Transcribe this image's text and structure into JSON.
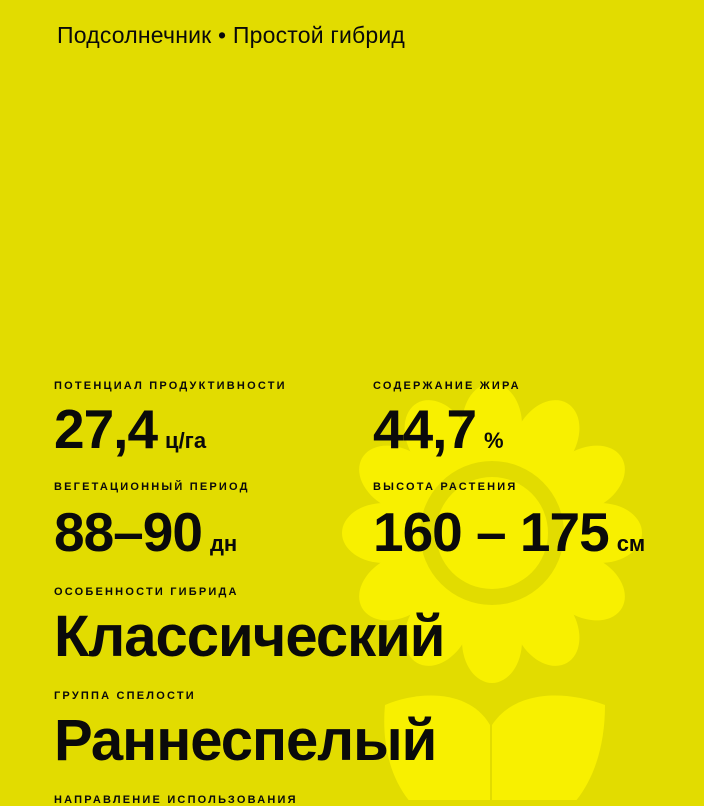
{
  "header": {
    "title": "Подсолнечник • Простой гибрид"
  },
  "colors": {
    "background": "#e2dc00",
    "flower": "#f8f000",
    "text": "#0a0a0a"
  },
  "decoration": {
    "icon": "sunflower-icon"
  },
  "stats": [
    {
      "label": "ПОТЕНЦИАЛ ПРОДУКТИВНОСТИ",
      "value": "27,4",
      "unit": "ц/га"
    },
    {
      "label": "СОДЕРЖАНИЕ ЖИРА",
      "value": "44,7",
      "unit": "%"
    },
    {
      "label": "ВЕГЕТАЦИОННЫЙ ПЕРИОД",
      "value": "88–90",
      "unit": "дн"
    },
    {
      "label": "ВЫСОТА РАСТЕНИЯ",
      "value": "160 – 175",
      "unit": "см"
    }
  ],
  "features": [
    {
      "label": "ОСОБЕННОСТИ ГИБРИДА",
      "value": "Классический"
    },
    {
      "label": "ГРУППА СПЕЛОСТИ",
      "value": "Раннеспелый"
    },
    {
      "label": "НАПРАВЛЕНИЕ ИСПОЛЬЗОВАНИЯ"
    }
  ]
}
